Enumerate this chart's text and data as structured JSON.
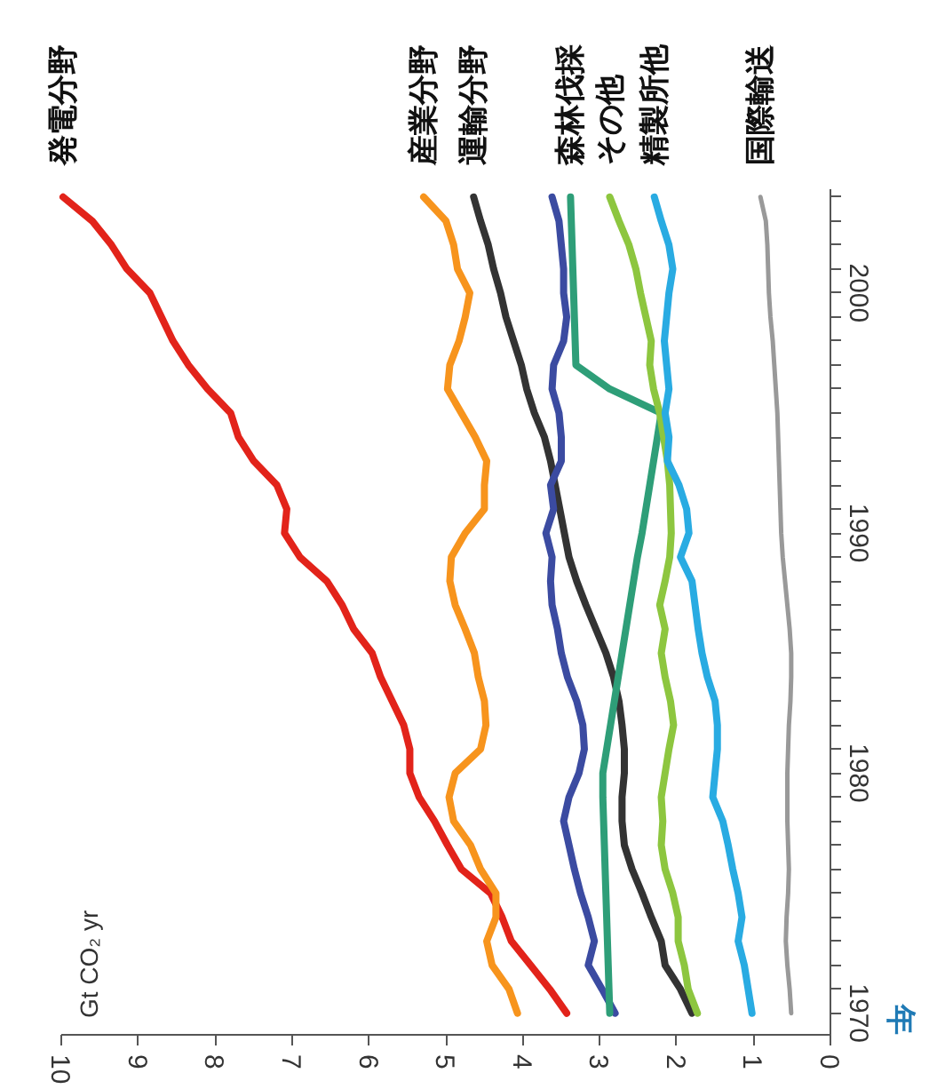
{
  "chart_data": {
    "type": "line",
    "annotations": [
      "Gt CO₂ yr"
    ],
    "ylabel": "年",
    "xlim": [
      10,
      0
    ],
    "ylim": [
      1969.1,
      2004.3
    ],
    "xticks": [
      0,
      1,
      2,
      3,
      4,
      5,
      6,
      7,
      8,
      9,
      10
    ],
    "yticks": [
      1970,
      {
        "value": 1971,
        "label": null
      },
      {
        "value": 1972,
        "label": null
      },
      {
        "value": 1973,
        "label": null
      },
      {
        "value": 1974,
        "label": null
      },
      {
        "value": 1975,
        "label": null
      },
      {
        "value": 1976,
        "label": null
      },
      {
        "value": 1977,
        "label": null
      },
      {
        "value": 1978,
        "label": null
      },
      {
        "value": 1979,
        "label": null
      },
      1980,
      {
        "value": 1981,
        "label": null
      },
      {
        "value": 1982,
        "label": null
      },
      {
        "value": 1983,
        "label": null
      },
      {
        "value": 1984,
        "label": null
      },
      {
        "value": 1985,
        "label": null
      },
      {
        "value": 1986,
        "label": null
      },
      {
        "value": 1987,
        "label": null
      },
      {
        "value": 1988,
        "label": null
      },
      {
        "value": 1989,
        "label": null
      },
      1990,
      {
        "value": 1991,
        "label": null
      },
      {
        "value": 1992,
        "label": null
      },
      {
        "value": 1993,
        "label": null
      },
      {
        "value": 1994,
        "label": null
      },
      {
        "value": 1995,
        "label": null
      },
      {
        "value": 1996,
        "label": null
      },
      {
        "value": 1997,
        "label": null
      },
      {
        "value": 1998,
        "label": null
      },
      {
        "value": 1999,
        "label": null
      },
      2000,
      {
        "value": 2001,
        "label": null
      },
      {
        "value": 2002,
        "label": null
      },
      {
        "value": 2003,
        "label": null
      },
      {
        "value": 2004,
        "label": null
      }
    ],
    "series": [
      {
        "name": "発電分野",
        "color": "#e2231a",
        "x": [
          3.43,
          3.65,
          3.9,
          4.15,
          4.27,
          4.42,
          4.8,
          4.98,
          5.15,
          5.35,
          5.47,
          5.47,
          5.55,
          5.7,
          5.85,
          5.96,
          6.2,
          6.35,
          6.55,
          6.9,
          7.1,
          7.07,
          7.2,
          7.5,
          7.7,
          7.8,
          8.1,
          8.35,
          8.55,
          8.7,
          8.85,
          9.15,
          9.35,
          9.6,
          9.98
        ],
        "values": [
          1970,
          1971,
          1972,
          1973,
          1974,
          1975,
          1976,
          1977,
          1978,
          1979,
          1980,
          1981,
          1982,
          1983,
          1984,
          1985,
          1986,
          1987,
          1988,
          1989,
          1990,
          1991,
          1992,
          1993,
          1994,
          1995,
          1996,
          1997,
          1998,
          1999,
          2000,
          2001,
          2002,
          2003,
          2004
        ]
      },
      {
        "name": "産業分野",
        "color": "#f7941d",
        "x": [
          4.07,
          4.18,
          4.4,
          4.47,
          4.35,
          4.35,
          4.55,
          4.68,
          4.9,
          4.96,
          4.88,
          4.55,
          4.48,
          4.5,
          4.58,
          4.63,
          4.75,
          4.88,
          4.95,
          4.93,
          4.75,
          4.5,
          4.5,
          4.47,
          4.62,
          4.8,
          4.98,
          4.95,
          4.83,
          4.75,
          4.69,
          4.85,
          4.9,
          5.0,
          5.29
        ],
        "values": [
          1970,
          1971,
          1972,
          1973,
          1974,
          1975,
          1976,
          1977,
          1978,
          1979,
          1980,
          1981,
          1982,
          1983,
          1984,
          1985,
          1986,
          1987,
          1988,
          1989,
          1990,
          1991,
          1992,
          1993,
          1994,
          1995,
          1996,
          1997,
          1998,
          1999,
          2000,
          2001,
          2002,
          2003,
          2004
        ]
      },
      {
        "name": "運輸分野",
        "color": "#333333",
        "x": [
          1.8,
          1.95,
          2.15,
          2.2,
          2.33,
          2.45,
          2.58,
          2.68,
          2.71,
          2.71,
          2.68,
          2.68,
          2.71,
          2.75,
          2.82,
          2.92,
          3.05,
          3.18,
          3.3,
          3.4,
          3.46,
          3.52,
          3.58,
          3.64,
          3.72,
          3.85,
          3.95,
          4.02,
          4.12,
          4.22,
          4.29,
          4.38,
          4.45,
          4.55,
          4.64
        ],
        "values": [
          1970,
          1971,
          1972,
          1973,
          1974,
          1975,
          1976,
          1977,
          1978,
          1979,
          1980,
          1981,
          1982,
          1983,
          1984,
          1985,
          1986,
          1987,
          1988,
          1989,
          1990,
          1991,
          1992,
          1993,
          1994,
          1995,
          1996,
          1997,
          1998,
          1999,
          2000,
          2001,
          2002,
          2003,
          2004
        ]
      },
      {
        "color": "#3b4ba1",
        "x": [
          2.8,
          2.97,
          3.15,
          3.07,
          3.15,
          3.25,
          3.33,
          3.4,
          3.47,
          3.4,
          3.27,
          3.2,
          3.22,
          3.3,
          3.42,
          3.5,
          3.55,
          3.62,
          3.64,
          3.62,
          3.7,
          3.6,
          3.64,
          3.5,
          3.5,
          3.53,
          3.62,
          3.6,
          3.47,
          3.43,
          3.47,
          3.47,
          3.5,
          3.53,
          3.62
        ],
        "values": [
          1970,
          1971,
          1972,
          1973,
          1974,
          1975,
          1976,
          1977,
          1978,
          1979,
          1980,
          1981,
          1982,
          1983,
          1984,
          1985,
          1986,
          1987,
          1988,
          1989,
          1990,
          1991,
          1992,
          1993,
          1994,
          1995,
          1996,
          1997,
          1998,
          1999,
          2000,
          2001,
          2002,
          2003,
          2004
        ]
      },
      {
        "name": "森林伐採",
        "color": "#2e9e78",
        "x": [
          2.87,
          2.88,
          2.89,
          2.9,
          2.91,
          2.92,
          2.93,
          2.94,
          2.95,
          2.96,
          2.96,
          2.91,
          2.86,
          2.81,
          2.76,
          2.71,
          2.66,
          2.61,
          2.56,
          2.51,
          2.45,
          2.4,
          2.35,
          2.3,
          2.25,
          2.2,
          2.87,
          3.31,
          3.32,
          3.33,
          3.34,
          3.35,
          3.36,
          3.37,
          3.38
        ],
        "values": [
          1970,
          1971,
          1972,
          1973,
          1974,
          1975,
          1976,
          1977,
          1978,
          1979,
          1980,
          1981,
          1982,
          1983,
          1984,
          1985,
          1986,
          1987,
          1988,
          1989,
          1990,
          1991,
          1992,
          1993,
          1994,
          1995,
          1996,
          1997,
          1998,
          1999,
          2000,
          2001,
          2002,
          2003,
          2004
        ]
      },
      {
        "name": "その他",
        "color": "#8dc63f",
        "x": [
          1.73,
          1.85,
          1.9,
          1.98,
          1.98,
          2.05,
          2.15,
          2.2,
          2.18,
          2.2,
          2.15,
          2.1,
          2.04,
          2.08,
          2.15,
          2.2,
          2.15,
          2.22,
          2.15,
          2.09,
          2.07,
          2.08,
          2.09,
          2.12,
          2.17,
          2.22,
          2.3,
          2.35,
          2.33,
          2.4,
          2.47,
          2.53,
          2.62,
          2.75,
          2.87
        ],
        "values": [
          1970,
          1971,
          1972,
          1973,
          1974,
          1975,
          1976,
          1977,
          1978,
          1979,
          1980,
          1981,
          1982,
          1983,
          1984,
          1985,
          1986,
          1987,
          1988,
          1989,
          1990,
          1991,
          1992,
          1993,
          1994,
          1995,
          1996,
          1997,
          1998,
          1999,
          2000,
          2001,
          2002,
          2003,
          2004
        ]
      },
      {
        "name": "精製所他",
        "color": "#29abe2",
        "x": [
          1.02,
          1.07,
          1.12,
          1.2,
          1.15,
          1.2,
          1.27,
          1.33,
          1.4,
          1.53,
          1.5,
          1.47,
          1.47,
          1.5,
          1.6,
          1.67,
          1.72,
          1.76,
          1.8,
          1.95,
          1.84,
          1.87,
          1.97,
          2.12,
          2.1,
          2.15,
          2.1,
          2.13,
          2.16,
          2.13,
          2.1,
          2.05,
          2.1,
          2.2,
          2.29
        ],
        "values": [
          1970,
          1971,
          1972,
          1973,
          1974,
          1975,
          1976,
          1977,
          1978,
          1979,
          1980,
          1981,
          1982,
          1983,
          1984,
          1985,
          1986,
          1987,
          1988,
          1989,
          1990,
          1991,
          1992,
          1993,
          1994,
          1995,
          1996,
          1997,
          1998,
          1999,
          2000,
          2001,
          2002,
          2003,
          2004
        ]
      },
      {
        "name": "国際輸送",
        "color": "#999999",
        "x": [
          0.51,
          0.53,
          0.56,
          0.58,
          0.57,
          0.55,
          0.54,
          0.55,
          0.56,
          0.56,
          0.56,
          0.55,
          0.54,
          0.52,
          0.51,
          0.51,
          0.53,
          0.56,
          0.59,
          0.62,
          0.64,
          0.65,
          0.66,
          0.67,
          0.68,
          0.69,
          0.71,
          0.73,
          0.75,
          0.78,
          0.8,
          0.81,
          0.82,
          0.84,
          0.91
        ],
        "values": [
          1970,
          1971,
          1972,
          1973,
          1974,
          1975,
          1976,
          1977,
          1978,
          1979,
          1980,
          1981,
          1982,
          1983,
          1984,
          1985,
          1986,
          1987,
          1988,
          1989,
          1990,
          1991,
          1992,
          1993,
          1994,
          1995,
          1996,
          1997,
          1998,
          1999,
          2000,
          2001,
          2002,
          2003,
          2004
        ]
      }
    ]
  }
}
